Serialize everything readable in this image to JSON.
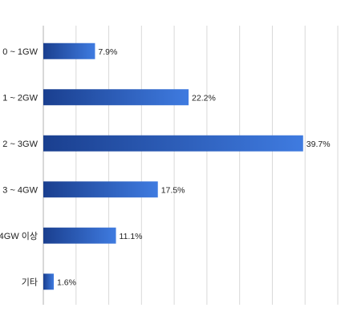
{
  "chart_data": {
    "type": "bar",
    "orientation": "horizontal",
    "categories": [
      "0 ~ 1GW",
      "1 ~ 2GW",
      "2 ~ 3GW",
      "3 ~ 4GW",
      "4GW 이상",
      "기타"
    ],
    "values": [
      7.9,
      22.2,
      39.7,
      17.5,
      11.1,
      1.6
    ],
    "value_labels": [
      "7.9%",
      "22.2%",
      "39.7%",
      "17.5%",
      "11.1%",
      "1.6%"
    ],
    "unit": "%",
    "xlim": [
      0,
      45
    ],
    "grid": true,
    "grid_step": 5,
    "bar_color_start": "#1a3f8f",
    "bar_color_end": "#3f7be0",
    "grid_color": "#d9d9d9"
  }
}
